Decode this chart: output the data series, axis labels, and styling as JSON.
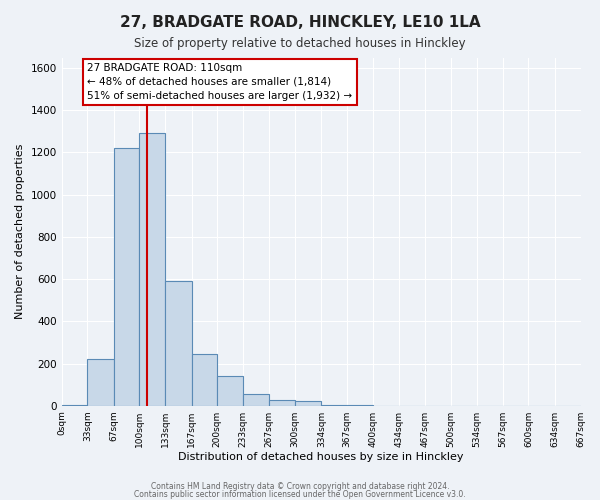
{
  "title": "27, BRADGATE ROAD, HINCKLEY, LE10 1LA",
  "subtitle": "Size of property relative to detached houses in Hinckley",
  "xlabel": "Distribution of detached houses by size in Hinckley",
  "ylabel": "Number of detached properties",
  "bin_edges": [
    0,
    33,
    67,
    100,
    133,
    167,
    200,
    233,
    267,
    300,
    334,
    367,
    400,
    434,
    467,
    500,
    534,
    567,
    600,
    634,
    667
  ],
  "bar_heights": [
    5,
    220,
    1220,
    1290,
    590,
    245,
    140,
    55,
    25,
    20,
    5,
    5,
    0,
    0,
    0,
    0,
    0,
    0,
    0,
    0
  ],
  "bar_color": "#c8d8e8",
  "bar_edge_color": "#5a8ab5",
  "property_size": 110,
  "vline_color": "#cc0000",
  "annotation_line1": "27 BRADGATE ROAD: 110sqm",
  "annotation_line2": "← 48% of detached houses are smaller (1,814)",
  "annotation_line3": "51% of semi-detached houses are larger (1,932) →",
  "annotation_box_edge": "#cc0000",
  "annotation_box_face": "#ffffff",
  "ylim": [
    0,
    1650
  ],
  "yticks": [
    0,
    200,
    400,
    600,
    800,
    1000,
    1200,
    1400,
    1600
  ],
  "background_color": "#eef2f7",
  "grid_color": "#ffffff",
  "footer_line1": "Contains HM Land Registry data © Crown copyright and database right 2024.",
  "footer_line2": "Contains public sector information licensed under the Open Government Licence v3.0."
}
